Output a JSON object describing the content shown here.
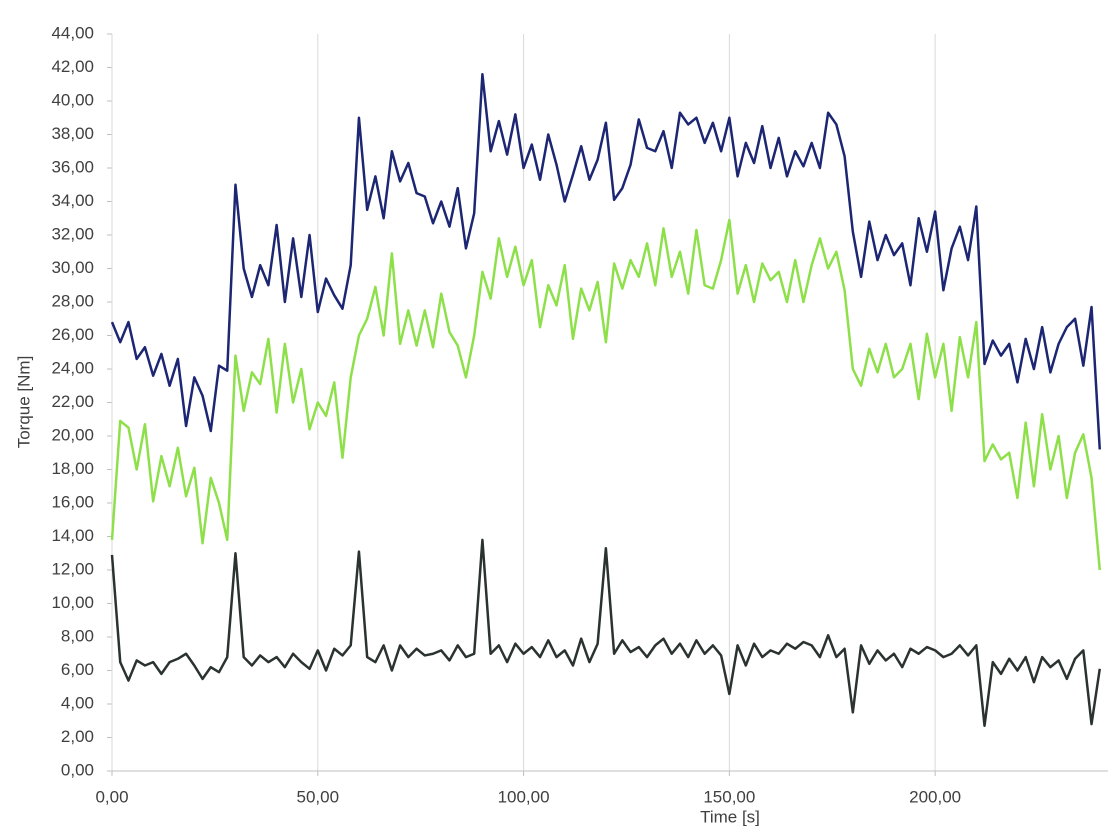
{
  "chart_data": {
    "type": "line",
    "x_label": "Time [s]",
    "y_label": "Torque [Nm]",
    "xlim": [
      0,
      242
    ],
    "ylim": [
      0,
      44
    ],
    "xticks": [
      {
        "value": 0,
        "label": "0,00"
      },
      {
        "value": 50,
        "label": "50,00"
      },
      {
        "value": 100,
        "label": "100,00"
      },
      {
        "value": 150,
        "label": "150,00"
      },
      {
        "value": 200,
        "label": "200,00"
      }
    ],
    "yticks": [
      {
        "value": 0,
        "label": "0,00"
      },
      {
        "value": 2,
        "label": "2,00"
      },
      {
        "value": 4,
        "label": "4,00"
      },
      {
        "value": 6,
        "label": "6,00"
      },
      {
        "value": 8,
        "label": "8,00"
      },
      {
        "value": 10,
        "label": "10,00"
      },
      {
        "value": 12,
        "label": "12,00"
      },
      {
        "value": 14,
        "label": "14,00"
      },
      {
        "value": 16,
        "label": "16,00"
      },
      {
        "value": 18,
        "label": "18,00"
      },
      {
        "value": 20,
        "label": "20,00"
      },
      {
        "value": 22,
        "label": "22,00"
      },
      {
        "value": 24,
        "label": "24,00"
      },
      {
        "value": 26,
        "label": "26,00"
      },
      {
        "value": 28,
        "label": "28,00"
      },
      {
        "value": 30,
        "label": "30,00"
      },
      {
        "value": 32,
        "label": "32,00"
      },
      {
        "value": 34,
        "label": "34,00"
      },
      {
        "value": 36,
        "label": "36,00"
      },
      {
        "value": 38,
        "label": "38,00"
      },
      {
        "value": 40,
        "label": "40,00"
      },
      {
        "value": 42,
        "label": "42,00"
      },
      {
        "value": 44,
        "label": "44,00"
      }
    ],
    "grid": "x",
    "x": [
      0,
      2,
      4,
      6,
      8,
      10,
      12,
      14,
      16,
      18,
      20,
      22,
      24,
      26,
      28,
      30,
      32,
      34,
      36,
      38,
      40,
      42,
      44,
      46,
      48,
      50,
      52,
      54,
      56,
      58,
      60,
      62,
      64,
      66,
      68,
      70,
      72,
      74,
      76,
      78,
      80,
      82,
      84,
      86,
      88,
      90,
      92,
      94,
      96,
      98,
      100,
      102,
      104,
      106,
      108,
      110,
      112,
      114,
      116,
      118,
      120,
      122,
      124,
      126,
      128,
      130,
      132,
      134,
      136,
      138,
      140,
      142,
      144,
      146,
      148,
      150,
      152,
      154,
      156,
      158,
      160,
      162,
      164,
      166,
      168,
      170,
      172,
      174,
      176,
      178,
      180,
      182,
      184,
      186,
      188,
      190,
      192,
      194,
      196,
      198,
      200,
      202,
      204,
      206,
      208,
      210,
      212,
      214,
      216,
      218,
      220,
      222,
      224,
      226,
      228,
      230,
      232,
      234,
      236,
      238,
      240
    ],
    "series": [
      {
        "color": "#1c2672",
        "values": [
          26.8,
          25.6,
          26.8,
          24.6,
          25.3,
          23.6,
          24.9,
          23.0,
          24.6,
          20.6,
          23.5,
          22.4,
          20.3,
          24.2,
          23.9,
          35.0,
          30.0,
          28.3,
          30.2,
          29.0,
          32.6,
          28.0,
          31.8,
          28.3,
          32.0,
          27.4,
          29.4,
          28.4,
          27.6,
          30.2,
          39.0,
          33.5,
          35.5,
          33.0,
          37.0,
          35.2,
          36.3,
          34.5,
          34.3,
          32.7,
          34.0,
          32.5,
          34.8,
          31.2,
          33.3,
          41.6,
          37.0,
          38.8,
          36.8,
          39.2,
          36.0,
          37.4,
          35.3,
          38.0,
          36.2,
          34.0,
          35.6,
          37.3,
          35.3,
          36.5,
          38.7,
          34.1,
          34.8,
          36.2,
          38.9,
          37.2,
          37.0,
          38.2,
          36.0,
          39.3,
          38.6,
          39.0,
          37.5,
          38.7,
          37.0,
          39.0,
          35.5,
          37.5,
          36.3,
          38.5,
          36.0,
          37.8,
          35.5,
          37.0,
          36.1,
          37.5,
          36.0,
          39.3,
          38.6,
          36.7,
          32.2,
          29.5,
          32.8,
          30.5,
          32.0,
          30.8,
          31.5,
          29.0,
          33.0,
          31.0,
          33.4,
          28.7,
          31.2,
          32.5,
          30.5,
          33.7,
          24.3,
          25.7,
          24.8,
          25.5,
          23.2,
          25.8,
          24.0,
          26.5,
          23.8,
          25.5,
          26.5,
          27.0,
          24.2,
          27.7,
          19.2
        ]
      },
      {
        "color": "#8ee04a",
        "values": [
          13.8,
          20.9,
          20.5,
          18.0,
          20.7,
          16.1,
          18.8,
          17.0,
          19.3,
          16.4,
          18.1,
          13.6,
          17.5,
          16.0,
          13.8,
          24.8,
          21.5,
          23.8,
          23.1,
          25.8,
          21.4,
          25.5,
          22.0,
          24.0,
          20.4,
          22.0,
          21.2,
          23.2,
          18.7,
          23.5,
          26.0,
          27.0,
          28.9,
          26.0,
          30.9,
          25.5,
          27.5,
          25.4,
          27.5,
          25.3,
          28.5,
          26.2,
          25.4,
          23.5,
          26.0,
          29.8,
          28.2,
          31.8,
          29.5,
          31.3,
          29.0,
          30.5,
          26.5,
          29.0,
          27.8,
          30.2,
          25.8,
          28.8,
          27.5,
          29.2,
          25.6,
          30.3,
          28.8,
          30.5,
          29.5,
          31.5,
          29.0,
          32.4,
          29.5,
          31.0,
          28.5,
          32.3,
          29.0,
          28.8,
          30.5,
          32.9,
          28.5,
          30.2,
          28.0,
          30.3,
          29.3,
          29.8,
          28.0,
          30.5,
          28.0,
          30.2,
          31.8,
          30.0,
          31.0,
          28.7,
          24.0,
          23.0,
          25.2,
          23.8,
          25.5,
          23.5,
          24.0,
          25.5,
          22.2,
          26.1,
          23.5,
          25.5,
          21.5,
          25.9,
          23.5,
          26.8,
          18.5,
          19.5,
          18.6,
          19.0,
          16.3,
          20.8,
          17.0,
          21.3,
          18.0,
          20.0,
          16.3,
          19.0,
          20.1,
          17.5,
          12.0
        ]
      },
      {
        "color": "#2b3330",
        "values": [
          12.9,
          6.5,
          5.4,
          6.6,
          6.3,
          6.5,
          5.8,
          6.5,
          6.7,
          7.0,
          6.3,
          5.5,
          6.2,
          5.9,
          6.8,
          13.0,
          6.8,
          6.3,
          6.9,
          6.5,
          6.8,
          6.2,
          7.0,
          6.5,
          6.1,
          7.2,
          6.0,
          7.3,
          6.9,
          7.5,
          13.1,
          6.8,
          6.5,
          7.5,
          6.0,
          7.5,
          6.8,
          7.3,
          6.9,
          7.0,
          7.2,
          6.6,
          7.5,
          6.8,
          7.0,
          13.8,
          7.0,
          7.5,
          6.5,
          7.6,
          7.0,
          7.4,
          6.8,
          7.8,
          6.8,
          7.2,
          6.3,
          7.9,
          6.5,
          7.6,
          13.3,
          7.0,
          7.8,
          7.1,
          7.4,
          6.8,
          7.5,
          7.9,
          7.0,
          7.6,
          6.8,
          7.8,
          7.0,
          7.5,
          6.9,
          4.6,
          7.5,
          6.3,
          7.6,
          6.8,
          7.2,
          7.0,
          7.6,
          7.3,
          7.7,
          7.5,
          6.8,
          8.1,
          6.8,
          7.3,
          3.5,
          7.5,
          6.4,
          7.2,
          6.6,
          7.0,
          6.2,
          7.3,
          7.0,
          7.4,
          7.2,
          6.8,
          7.0,
          7.5,
          6.9,
          7.5,
          2.7,
          6.5,
          5.8,
          6.7,
          6.0,
          6.8,
          5.3,
          6.8,
          6.2,
          6.6,
          5.5,
          6.7,
          7.2,
          2.8,
          6.1
        ]
      }
    ]
  }
}
